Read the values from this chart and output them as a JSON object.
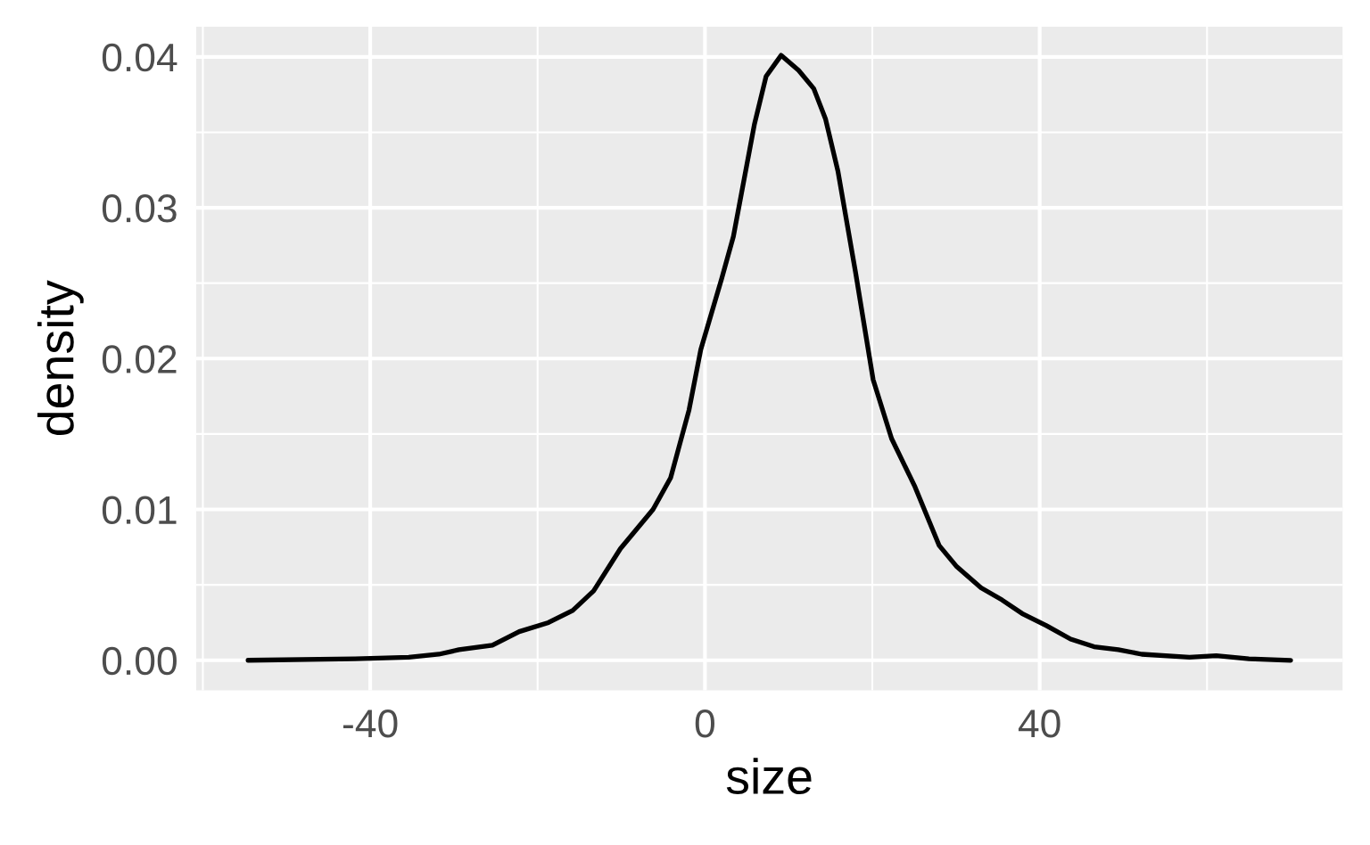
{
  "chart_data": {
    "type": "line",
    "xlabel": "size",
    "ylabel": "density",
    "x": [
      -54.6,
      -41.8,
      -35.4,
      -31.8,
      -29.4,
      -25.4,
      -22.2,
      -18.7,
      -15.8,
      -13.3,
      -10.1,
      -6.2,
      -4.1,
      -1.9,
      -0.5,
      2.0,
      3.4,
      5.9,
      7.3,
      9.1,
      11.2,
      13.0,
      14.4,
      15.9,
      18.0,
      20.1,
      22.3,
      25.1,
      28.0,
      30.1,
      33.0,
      35.5,
      37.9,
      40.8,
      43.7,
      46.5,
      49.4,
      52.2,
      57.9,
      61.1,
      65.0,
      70.0
    ],
    "series": [
      {
        "color": "#000000",
        "values": [
          0.0,
          0.0001,
          0.0002,
          0.0004,
          0.0007,
          0.001,
          0.0019,
          0.0025,
          0.0033,
          0.0046,
          0.0074,
          0.01,
          0.0121,
          0.0166,
          0.0206,
          0.0253,
          0.0281,
          0.0355,
          0.0387,
          0.0401,
          0.0391,
          0.0379,
          0.0359,
          0.0324,
          0.0257,
          0.0186,
          0.0147,
          0.0115,
          0.0076,
          0.0062,
          0.0048,
          0.004,
          0.0031,
          0.0023,
          0.0014,
          0.0009,
          0.0007,
          0.0004,
          0.0002,
          0.0003,
          0.0001,
          0.0
        ]
      }
    ],
    "xlim": [
      -60.8,
      76.2
    ],
    "xticks": [
      {
        "value": -60,
        "label": null
      },
      -40,
      {
        "value": -20,
        "label": null
      },
      0,
      {
        "value": 20,
        "label": null
      },
      40,
      {
        "value": 60,
        "label": null
      }
    ],
    "ylim": [
      -0.002,
      0.042
    ],
    "yticks": [
      {
        "value": 0,
        "label": "0.00"
      },
      {
        "value": 0.005,
        "label": null
      },
      0.01,
      {
        "value": 0.015,
        "label": null
      },
      0.02,
      {
        "value": 0.025,
        "label": null
      },
      0.03,
      {
        "value": 0.035,
        "label": null
      },
      0.04
    ],
    "grid": true
  }
}
